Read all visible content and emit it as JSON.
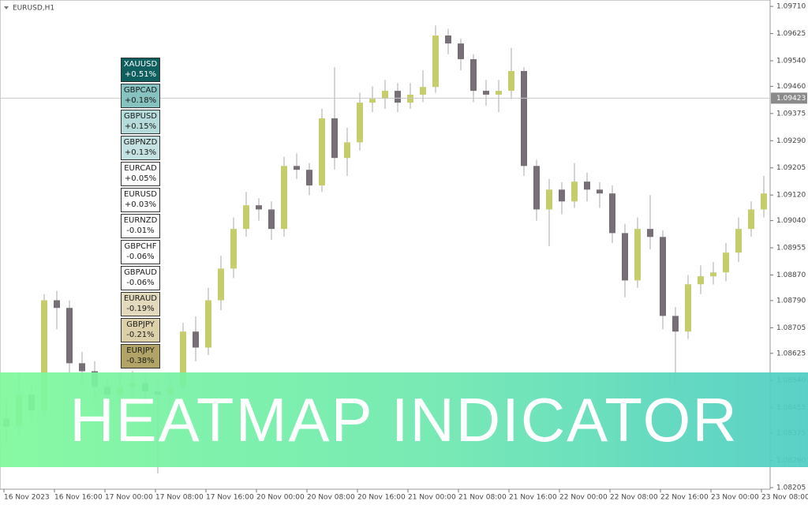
{
  "chart_data": {
    "type": "candlestick",
    "title": "EURUSD,H1",
    "bull_color": "#c5cd6c",
    "bear_color": "#776f76",
    "ylim": [
      1.082,
      1.0973
    ],
    "yticks": [
      {
        "value": 1.0971,
        "label": "1.09710"
      },
      {
        "value": 1.09625,
        "label": "1.09625"
      },
      {
        "value": 1.0954,
        "label": "1.09540"
      },
      {
        "value": 1.0946,
        "label": "1.09460"
      },
      {
        "value": 1.09375,
        "label": "1.09375"
      },
      {
        "value": 1.0929,
        "label": "1.09290"
      },
      {
        "value": 1.09205,
        "label": "1.09205"
      },
      {
        "value": 1.0912,
        "label": "1.09120"
      },
      {
        "value": 1.0904,
        "label": "1.09040"
      },
      {
        "value": 1.08955,
        "label": "1.08955"
      },
      {
        "value": 1.0887,
        "label": "1.08870"
      },
      {
        "value": 1.0879,
        "label": "1.08790"
      },
      {
        "value": 1.08705,
        "label": "1.08705"
      },
      {
        "value": 1.08625,
        "label": "1.08625"
      },
      {
        "value": 1.0854,
        "label": "1.08540"
      },
      {
        "value": 1.08455,
        "label": "1.08455"
      },
      {
        "value": 1.08375,
        "label": "1.08375"
      },
      {
        "value": 1.0829,
        "label": "1.08290"
      },
      {
        "value": 1.08205,
        "label": "1.08205"
      }
    ],
    "current_price": {
      "value": 1.09423,
      "label": "1.09423"
    },
    "categories": [
      "16 Nov 2023",
      null,
      null,
      null,
      "16 Nov 16:00",
      null,
      null,
      null,
      "17 Nov 00:00",
      null,
      null,
      null,
      "17 Nov 08:00",
      null,
      null,
      null,
      "17 Nov 16:00",
      null,
      null,
      null,
      "20 Nov 00:00",
      null,
      null,
      null,
      "20 Nov 08:00",
      null,
      null,
      null,
      "20 Nov 16:00",
      null,
      null,
      null,
      "21 Nov 00:00",
      null,
      null,
      null,
      "21 Nov 08:00",
      null,
      null,
      null,
      "21 Nov 16:00",
      null,
      null,
      null,
      "22 Nov 00:00",
      null,
      null,
      null,
      "22 Nov 08:00",
      null,
      null,
      null,
      "22 Nov 16:00",
      null,
      null,
      null,
      "23 Nov 00:00",
      null,
      null,
      null,
      "23 Nov 08:00"
    ],
    "open": [
      1.0842,
      1.08396,
      1.08495,
      1.08446,
      1.08791,
      1.08767,
      1.08594,
      1.08569,
      1.0852,
      1.08495,
      1.0852,
      1.08532,
      1.08507,
      1.08495,
      1.0852,
      1.08693,
      1.08643,
      1.08791,
      1.0889,
      1.09014,
      1.09088,
      1.09075,
      1.09014,
      1.09211,
      1.09199,
      1.0915,
      1.0936,
      1.09236,
      1.09285,
      1.09409,
      1.09421,
      1.09446,
      1.09409,
      1.09434,
      1.09458,
      1.09619,
      1.09594,
      1.09545,
      1.09446,
      1.09434,
      1.09446,
      1.09508,
      1.09211,
      1.09075,
      1.09137,
      1.091,
      1.09162,
      1.09137,
      1.09125,
      1.09001,
      1.08853,
      1.09014,
      1.08989,
      1.08742,
      1.08693,
      1.08841,
      1.08866,
      1.08878,
      1.0894,
      1.09014,
      1.09075
    ],
    "high": [
      1.0848,
      1.0856,
      1.0853,
      1.0881,
      1.0882,
      1.0879,
      1.0863,
      1.086,
      1.0855,
      1.0856,
      1.0857,
      1.0856,
      1.0854,
      1.0856,
      1.0872,
      1.0874,
      1.0883,
      1.0893,
      1.0905,
      1.0913,
      1.0911,
      1.091,
      1.0924,
      1.0925,
      1.0922,
      1.0939,
      1.0952,
      1.0933,
      1.0944,
      1.0946,
      1.0948,
      1.0947,
      1.0947,
      1.0951,
      1.0965,
      1.0964,
      1.0961,
      1.0956,
      1.0948,
      1.0948,
      1.0958,
      1.0952,
      1.0923,
      1.0917,
      1.0916,
      1.0922,
      1.0919,
      1.0916,
      1.0915,
      1.0903,
      1.0905,
      1.0912,
      1.0901,
      1.0877,
      1.0887,
      1.089,
      1.0891,
      1.0897,
      1.0905,
      1.091,
      1.0918
    ],
    "low": [
      1.0834,
      1.0837,
      1.0841,
      1.0842,
      1.087,
      1.0856,
      1.0853,
      1.0848,
      1.0845,
      1.0847,
      1.0849,
      1.0847,
      1.0825,
      1.0846,
      1.085,
      1.086,
      1.0862,
      1.0876,
      1.0886,
      1.0899,
      1.0904,
      1.0898,
      1.0899,
      1.0917,
      1.0912,
      1.0913,
      1.092,
      1.0918,
      1.0926,
      1.0938,
      1.0939,
      1.0938,
      1.0939,
      1.0941,
      1.0944,
      1.0956,
      1.0951,
      1.0941,
      1.094,
      1.0938,
      1.0942,
      1.0918,
      1.0904,
      1.0896,
      1.0906,
      1.0908,
      1.091,
      1.0908,
      1.0897,
      1.088,
      1.0883,
      1.0895,
      1.087,
      1.0852,
      1.0867,
      1.0881,
      1.0884,
      1.0885,
      1.0891,
      1.0899,
      1.0905
    ],
    "close": [
      1.08396,
      1.08495,
      1.08446,
      1.08791,
      1.08767,
      1.08594,
      1.08569,
      1.0852,
      1.08495,
      1.0852,
      1.08532,
      1.08507,
      1.08495,
      1.0852,
      1.08693,
      1.08643,
      1.08791,
      1.0889,
      1.09014,
      1.09088,
      1.09075,
      1.09014,
      1.09211,
      1.09199,
      1.0915,
      1.0936,
      1.09236,
      1.09285,
      1.09409,
      1.09421,
      1.09446,
      1.09409,
      1.09434,
      1.09458,
      1.09619,
      1.09594,
      1.09545,
      1.09446,
      1.09434,
      1.09446,
      1.09508,
      1.09211,
      1.09075,
      1.09137,
      1.091,
      1.09162,
      1.09137,
      1.09125,
      1.09001,
      1.08853,
      1.09014,
      1.08989,
      1.08742,
      1.08693,
      1.08841,
      1.08866,
      1.08878,
      1.0894,
      1.09014,
      1.09075,
      1.09125
    ]
  },
  "heatmap": {
    "items": [
      {
        "symbol": "XAUUSD",
        "change": "+0.51%",
        "color": "#0e5f5e",
        "text": "#ffffff"
      },
      {
        "symbol": "GBPCAD",
        "change": "+0.18%",
        "color": "#86c2c0",
        "text": "#1a1a1a"
      },
      {
        "symbol": "GBPUSD",
        "change": "+0.15%",
        "color": "#b5dbda",
        "text": "#1a1a1a"
      },
      {
        "symbol": "GBPNZD",
        "change": "+0.13%",
        "color": "#c4e2e1",
        "text": "#1a1a1a"
      },
      {
        "symbol": "EURCAD",
        "change": "+0.05%",
        "color": "#ffffff",
        "text": "#1a1a1a"
      },
      {
        "symbol": "EURUSD",
        "change": "+0.03%",
        "color": "#ffffff",
        "text": "#1a1a1a"
      },
      {
        "symbol": "EURNZD",
        "change": "-0.01%",
        "color": "#ffffff",
        "text": "#1a1a1a"
      },
      {
        "symbol": "GBPCHF",
        "change": "-0.06%",
        "color": "#ffffff",
        "text": "#1a1a1a"
      },
      {
        "symbol": "GBPAUD",
        "change": "-0.06%",
        "color": "#ffffff",
        "text": "#1a1a1a"
      },
      {
        "symbol": "EURAUD",
        "change": "-0.19%",
        "color": "#e3d9bd",
        "text": "#1a1a1a"
      },
      {
        "symbol": "GBPJPY",
        "change": "-0.21%",
        "color": "#dcd0ab",
        "text": "#1a1a1a"
      },
      {
        "symbol": "EURJPY",
        "change": "-0.38%",
        "color": "#b2a466",
        "text": "#1a1a1a"
      }
    ]
  },
  "banner": {
    "title": "HEATMAP INDICATOR"
  }
}
